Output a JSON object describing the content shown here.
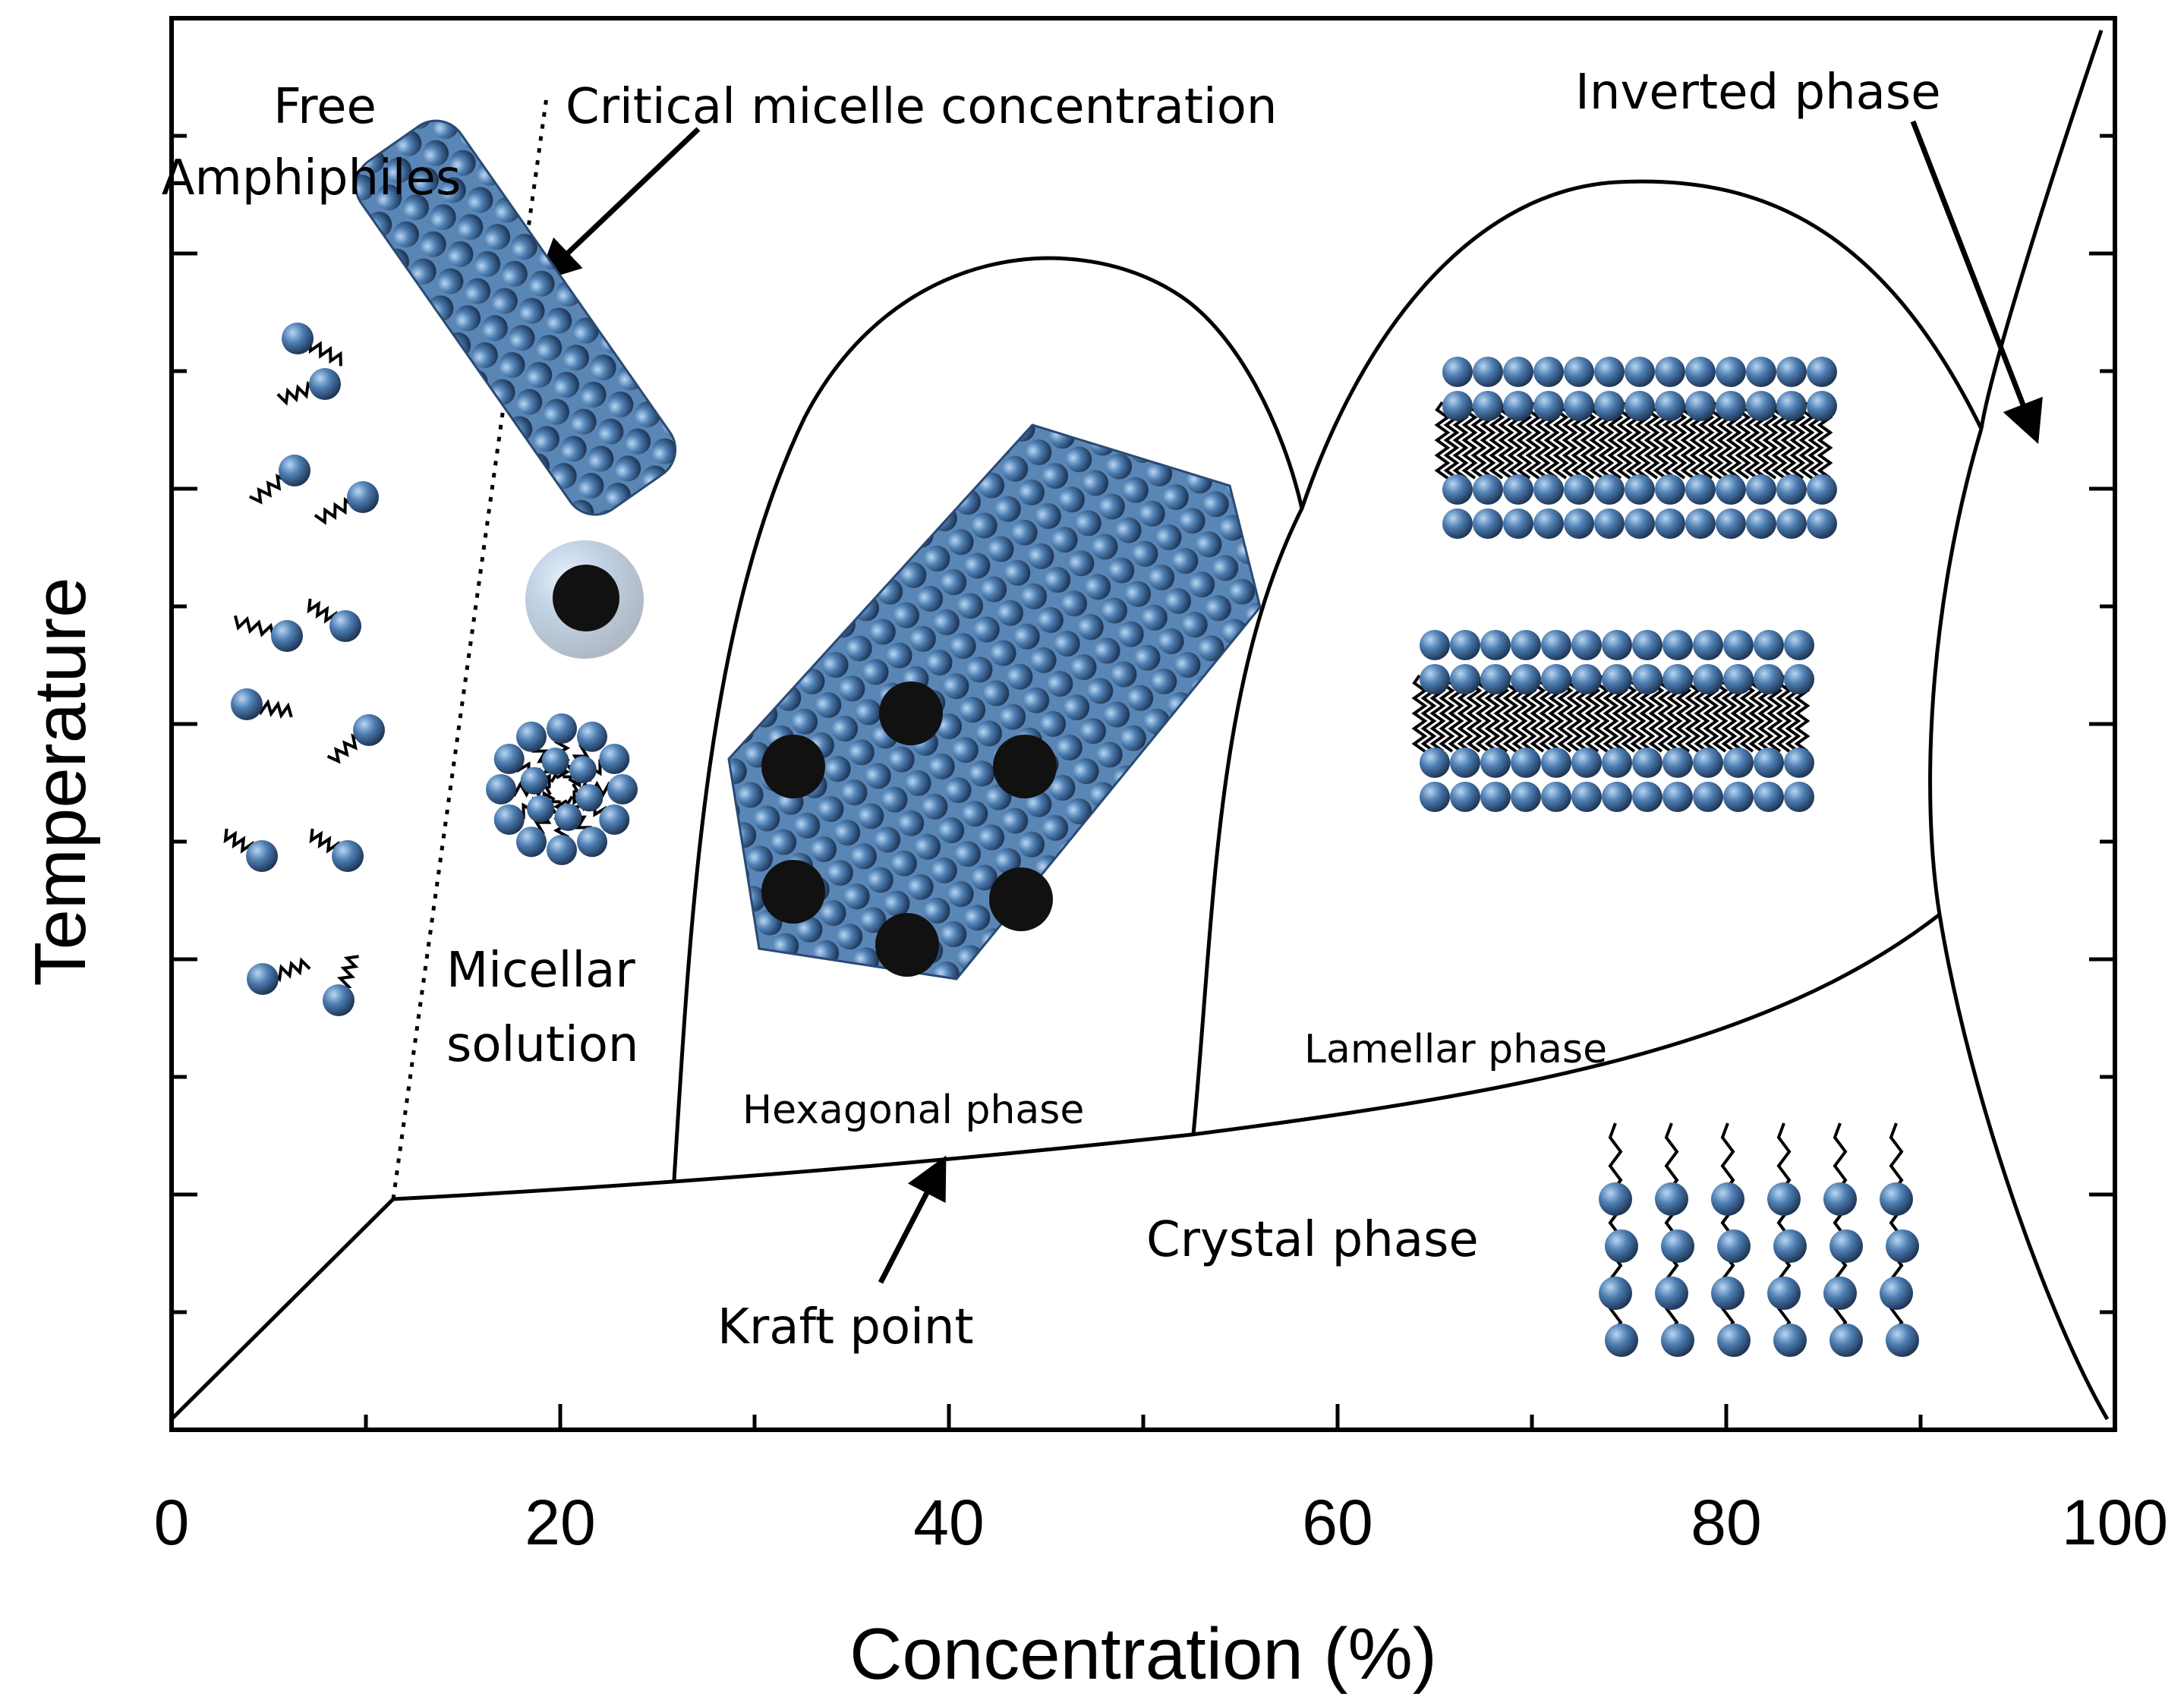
{
  "axes": {
    "x_title": "Concentration (%)",
    "y_title": "Temperature",
    "x_ticks": [
      "0",
      "20",
      "40",
      "60",
      "80",
      "100"
    ]
  },
  "labels": {
    "free_amphiphiles_1": "Free",
    "free_amphiphiles_2": "Amphiphiles",
    "cmc": "Critical micelle concentration",
    "inverted": "Inverted phase",
    "micellar_1": "Micellar",
    "micellar_2": "solution",
    "hexagonal": "Hexagonal phase",
    "lamellar": "Lamellar phase",
    "crystal": "Crystal phase",
    "kraft": "Kraft point"
  },
  "colors": {
    "sphere_light": "#9cc3e8",
    "sphere_mid": "#4f7fb3",
    "sphere_dark": "#233f63",
    "line": "#000000"
  }
}
